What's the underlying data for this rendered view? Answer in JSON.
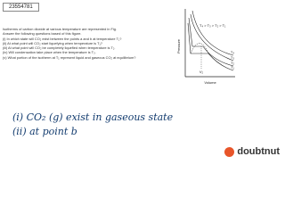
{
  "video_id": "23554781",
  "question": {
    "lines": [
      "Isotherms of carbon dioxide at various temperature are represented in Fig.",
      "Answer the following questions based of this figure.",
      "(i) In which state will CO₂ exist between the points a and b at temperature T₁?",
      "(ii) At what point will CO₂ start liquefying when temperature is T₁?",
      "(iii) At what point will CO₂ be completely liquefied when temperature is T₂.",
      "(iv) Will condensation take place when the temperature is T₃.",
      "(v) What portion of the isotherm at T₁ represent liquid and gaseous CO₂ at equilibrium?"
    ]
  },
  "figure": {
    "y_label": "Pressure",
    "x_label": "Volume",
    "relation": "T₄ > T₃ > T₂ > T₁",
    "volume_mark": "V₂",
    "curves": [
      "T₄",
      "T₃",
      "T₂",
      "T₁"
    ]
  },
  "answer": {
    "lines": [
      "(i) CO₂ (g) exist in gaseous state",
      "(ii) at point b"
    ]
  },
  "brand": "doubtnut"
}
